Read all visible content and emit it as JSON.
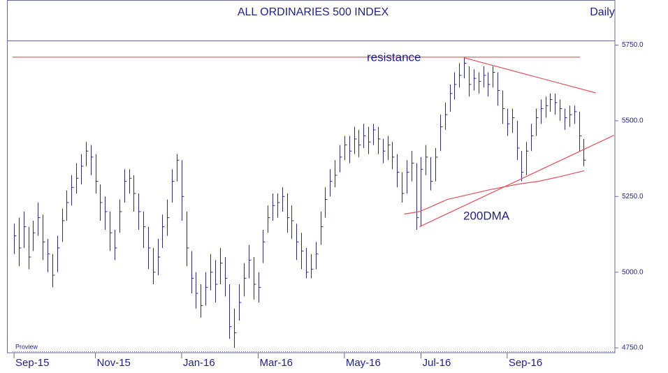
{
  "chart_data": {
    "type": "ohlc",
    "title": "ALL ORDINARIES 500 INDEX",
    "period": "Daily",
    "watermark": "Proview",
    "color": "#2b2b7b",
    "axis_color": "#6a6a9a",
    "xlim": [
      -0.3,
      125.5
    ],
    "ylim": [
      4734,
      5765
    ],
    "yticks": [
      {
        "value": 4750,
        "label": "4750.0"
      },
      {
        "value": 5000,
        "label": "5000.0"
      },
      {
        "value": 5250,
        "label": "5250.0"
      },
      {
        "value": 5500,
        "label": "5500.0"
      },
      {
        "value": 5750,
        "label": "5750.0"
      }
    ],
    "categories": [
      "Sep-15",
      null,
      null,
      null,
      null,
      null,
      null,
      null,
      null,
      null,
      null,
      null,
      null,
      null,
      null,
      null,
      null,
      "Nov-15",
      null,
      null,
      null,
      null,
      null,
      null,
      null,
      null,
      null,
      null,
      null,
      null,
      null,
      null,
      null,
      null,
      null,
      "Jan-16",
      null,
      null,
      null,
      null,
      null,
      null,
      null,
      null,
      null,
      null,
      null,
      null,
      null,
      null,
      null,
      "Mar-16",
      null,
      null,
      null,
      null,
      null,
      null,
      null,
      null,
      null,
      null,
      null,
      null,
      null,
      null,
      null,
      null,
      null,
      "May-16",
      null,
      null,
      null,
      null,
      null,
      null,
      null,
      null,
      null,
      null,
      null,
      null,
      null,
      null,
      null,
      "Jul-16",
      null,
      null,
      null,
      null,
      null,
      null,
      null,
      null,
      null,
      null,
      null,
      null,
      null,
      null,
      null,
      null,
      null,
      "Sep-16",
      null,
      null,
      null,
      null,
      null,
      null,
      null,
      null,
      null,
      null,
      null,
      null,
      null,
      null,
      null,
      null
    ],
    "high": [
      5160,
      5180,
      5200,
      5150,
      5170,
      5230,
      5190,
      5110,
      5060,
      5120,
      5210,
      5270,
      5320,
      5360,
      5390,
      5430,
      5420,
      5390,
      5290,
      5250,
      5200,
      5140,
      5240,
      5340,
      5340,
      5320,
      5260,
      5200,
      5150,
      5080,
      5110,
      5190,
      5240,
      5340,
      5390,
      5370,
      5200,
      5070,
      5000,
      4960,
      5000,
      5060,
      5040,
      5080,
      5050,
      4960,
      4880,
      4960,
      5030,
      5090,
      5050,
      5000,
      5140,
      5220,
      5260,
      5260,
      5280,
      5260,
      5220,
      5160,
      5130,
      5080,
      5060,
      5100,
      5200,
      5280,
      5340,
      5370,
      5420,
      5450,
      5450,
      5480,
      5470,
      5490,
      5480,
      5490,
      5480,
      5440,
      5450,
      5430,
      5390,
      5330,
      5370,
      5400,
      5360,
      5380,
      5420,
      5380,
      5410,
      5520,
      5560,
      5620,
      5660,
      5690,
      5710,
      5680,
      5670,
      5660,
      5680,
      5660,
      5680,
      5660,
      5600,
      5540,
      5540,
      5500,
      5400,
      5430,
      5490,
      5540,
      5570,
      5580,
      5590,
      5590,
      5570,
      5540,
      5550,
      5550,
      5530,
      5440
    ],
    "low": [
      5060,
      5020,
      5080,
      5010,
      5070,
      5120,
      5040,
      5000,
      4950,
      5000,
      5100,
      5170,
      5220,
      5260,
      5290,
      5350,
      5320,
      5260,
      5170,
      5140,
      5070,
      5040,
      5130,
      5230,
      5260,
      5200,
      5140,
      5080,
      5010,
      4960,
      4990,
      5080,
      5120,
      5230,
      5300,
      5170,
      5020,
      4930,
      4880,
      4850,
      4890,
      4940,
      4900,
      4960,
      4920,
      4780,
      4750,
      4840,
      4920,
      4980,
      4910,
      4900,
      5030,
      5130,
      5170,
      5180,
      5200,
      5130,
      5110,
      5040,
      5010,
      4980,
      4980,
      5010,
      5090,
      5180,
      5250,
      5280,
      5330,
      5370,
      5360,
      5390,
      5380,
      5410,
      5390,
      5420,
      5390,
      5360,
      5370,
      5340,
      5280,
      5230,
      5260,
      5300,
      5140,
      5150,
      5320,
      5270,
      5300,
      5400,
      5470,
      5530,
      5570,
      5610,
      5640,
      5580,
      5600,
      5590,
      5610,
      5580,
      5610,
      5550,
      5490,
      5450,
      5460,
      5370,
      5300,
      5320,
      5400,
      5450,
      5490,
      5510,
      5530,
      5520,
      5500,
      5470,
      5480,
      5490,
      5400,
      5350
    ],
    "close": [
      5120,
      5080,
      5150,
      5050,
      5130,
      5180,
      5100,
      5060,
      4990,
      5080,
      5170,
      5230,
      5280,
      5310,
      5350,
      5400,
      5380,
      5300,
      5230,
      5200,
      5130,
      5080,
      5200,
      5300,
      5310,
      5260,
      5200,
      5150,
      5080,
      5000,
      5050,
      5150,
      5180,
      5300,
      5370,
      5250,
      5080,
      4980,
      4930,
      4890,
      4950,
      5000,
      4960,
      5030,
      4980,
      4820,
      4800,
      4900,
      4980,
      5040,
      4960,
      4950,
      5100,
      5180,
      5220,
      5230,
      5250,
      5180,
      5170,
      5100,
      5070,
      5000,
      5010,
      5060,
      5150,
      5240,
      5300,
      5320,
      5380,
      5420,
      5400,
      5440,
      5420,
      5450,
      5430,
      5470,
      5440,
      5400,
      5420,
      5380,
      5330,
      5260,
      5330,
      5360,
      5180,
      5340,
      5380,
      5300,
      5380,
      5480,
      5520,
      5590,
      5620,
      5650,
      5690,
      5620,
      5640,
      5630,
      5650,
      5620,
      5660,
      5600,
      5540,
      5490,
      5510,
      5410,
      5330,
      5400,
      5450,
      5510,
      5540,
      5550,
      5570,
      5560,
      5540,
      5510,
      5520,
      5530,
      5450,
      5370
    ],
    "lines": [
      {
        "label": "resistance",
        "color": "#e0505a",
        "x": [
          -0.3,
          118.2
        ],
        "values": [
          5710,
          5710
        ]
      },
      {
        "color": "#e0505a",
        "x": [
          94,
          121.5
        ],
        "values": [
          5708,
          5592
        ]
      },
      {
        "color": "#e0505a",
        "x": [
          84.7,
          125.3
        ],
        "values": [
          5150,
          5452
        ]
      },
      {
        "label": "200DMA",
        "color": "#e0505a",
        "x": [
          81.5,
          84.7,
          90.5,
          99.3,
          105.1,
          109.5,
          113.9,
          119.1
        ],
        "values": [
          5192,
          5200,
          5240,
          5272,
          5290,
          5300,
          5315,
          5335
        ]
      }
    ]
  }
}
